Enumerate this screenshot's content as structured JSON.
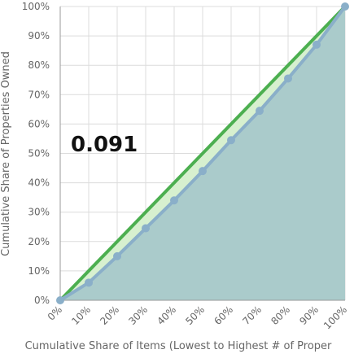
{
  "chart_data": {
    "type": "area",
    "xlabel": "Cumulative Share of Items (Lowest to Highest # of Proper",
    "ylabel": "Cumulative Share of Properties Owned",
    "xlim": [
      0,
      100
    ],
    "ylim": [
      0,
      100
    ],
    "x_ticks": [
      "0%",
      "10%",
      "20%",
      "30%",
      "40%",
      "50%",
      "60%",
      "70%",
      "80%",
      "90%",
      "100%"
    ],
    "y_ticks": [
      "0%",
      "10%",
      "20%",
      "30%",
      "40%",
      "50%",
      "60%",
      "70%",
      "80%",
      "90%",
      "100%"
    ],
    "grid": true,
    "annotation": "0.091",
    "series": [
      {
        "role": "equality",
        "x": [
          0,
          100
        ],
        "y": [
          0,
          100
        ],
        "color": "#4caf50"
      },
      {
        "role": "lorenz",
        "x": [
          0,
          10,
          20,
          30,
          40,
          50,
          60,
          70,
          80,
          90,
          100
        ],
        "y": [
          0,
          6,
          15,
          24.5,
          34,
          44,
          54.5,
          64.5,
          75.5,
          87,
          100
        ],
        "color": "#8aafc9",
        "fill": "#aacbcb"
      }
    ],
    "gap_fill": "#d7f0cf"
  }
}
